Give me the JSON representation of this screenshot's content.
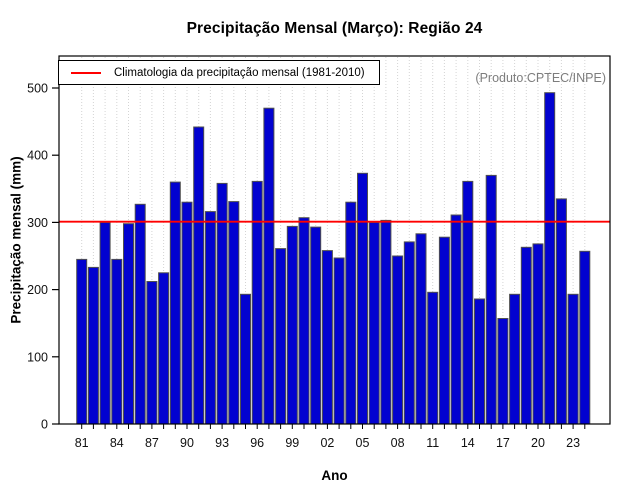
{
  "title": "Precipitação Mensal (Março): Região 24",
  "watermark": "(Produto:CPTEC/INPE)",
  "legend": {
    "label": "Climatologia da precipitação mensal (1981-2010)"
  },
  "chart_data": {
    "type": "bar",
    "title": "Precipitação Mensal (Março): Região 24",
    "xlabel": "Ano",
    "ylabel": "Precipitação mensal (mm)",
    "ylim": [
      0,
      547
    ],
    "y_ticks": [
      0,
      100,
      200,
      300,
      400,
      500
    ],
    "y_tick_labels": [
      "0",
      "100",
      "200",
      "300",
      "400",
      "500"
    ],
    "x_tick_step": 3,
    "x_tick_labels": [
      "81",
      "84",
      "87",
      "90",
      "93",
      "96",
      "99",
      "02",
      "05",
      "08",
      "11",
      "14",
      "17",
      "20",
      "23"
    ],
    "categories": [
      "1981",
      "1982",
      "1983",
      "1984",
      "1985",
      "1986",
      "1987",
      "1988",
      "1989",
      "1990",
      "1991",
      "1992",
      "1993",
      "1994",
      "1995",
      "1996",
      "1997",
      "1998",
      "1999",
      "2000",
      "2001",
      "2002",
      "2003",
      "2004",
      "2005",
      "2006",
      "2007",
      "2008",
      "2009",
      "2010",
      "2011",
      "2012",
      "2013",
      "2014",
      "2015",
      "2016",
      "2017",
      "2018",
      "2019",
      "2020",
      "2021",
      "2022",
      "2023",
      "2024"
    ],
    "values": [
      245,
      233,
      300,
      245,
      298,
      327,
      212,
      225,
      360,
      330,
      442,
      316,
      358,
      331,
      193,
      361,
      470,
      261,
      294,
      307,
      293,
      258,
      247,
      330,
      373,
      300,
      303,
      250,
      271,
      283,
      196,
      278,
      311,
      361,
      186,
      370,
      157,
      193,
      263,
      268,
      493,
      335,
      193,
      257
    ],
    "climatology": {
      "label": "Climatologia da precipitação mensal (1981-2010)",
      "value": 301
    },
    "legend_position": "top-left",
    "grid": "vertical-dotted",
    "colors": {
      "bar_fill": "#0202d0",
      "bar_border": "#4f4f4f",
      "climatology_line": "#ff0000",
      "grid_line": "#d4d4d4",
      "axis": "#000000",
      "tick_label": "#111111",
      "watermark": "#7d7d7d"
    }
  }
}
